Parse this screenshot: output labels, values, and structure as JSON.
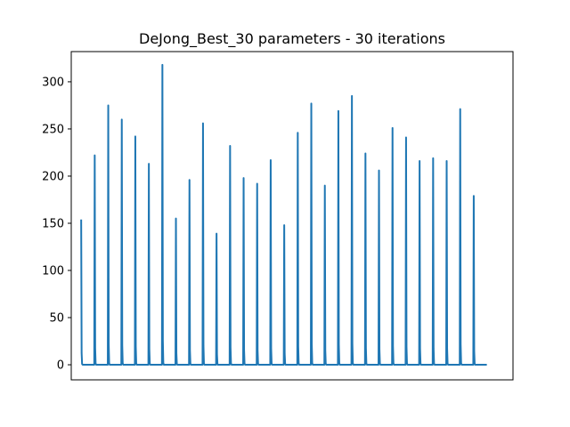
{
  "chart_data": {
    "type": "line",
    "title": "DeJong_Best_30 parameters - 30 iterations",
    "xlabel": "",
    "ylabel": "",
    "x_ticks_shown": false,
    "ylim": [
      -16,
      332
    ],
    "xlim": [
      -22,
      957
    ],
    "yticks": [
      0,
      50,
      100,
      150,
      200,
      250,
      300
    ],
    "grid": false,
    "legend": "none",
    "colors": {
      "series": "#1f77b4",
      "axes": "#000000",
      "background": "#ffffff"
    },
    "run_length": 30,
    "series": [
      {
        "peaks": [
          154,
          222,
          275,
          260,
          242,
          213,
          318,
          155,
          196,
          256,
          139,
          232,
          198,
          192,
          217,
          148,
          246,
          277,
          190,
          269,
          285,
          224,
          206,
          251,
          241,
          216,
          219,
          216,
          271,
          179
        ],
        "floor": 0
      }
    ]
  }
}
